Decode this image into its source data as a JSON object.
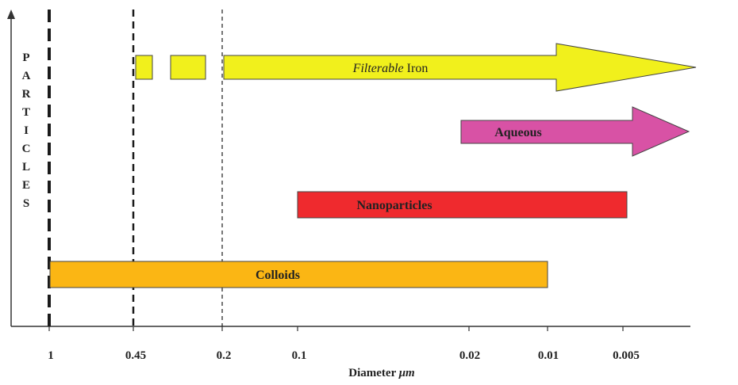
{
  "diagram": {
    "y_axis_letters": [
      "P",
      "A",
      "R",
      "T",
      "I",
      "C",
      "L",
      "E",
      "S"
    ],
    "x_axis_title_prefix": "Diameter ",
    "x_axis_title_unit": "μm",
    "x_ticks": [
      "1",
      "0.45",
      "0.2",
      "0.1",
      "0.02",
      "0.01",
      "0.005"
    ],
    "labels": {
      "filterable_italic": "Filterable",
      "filterable_rest": " Iron",
      "aqueous": "Aqueous",
      "nanoparticles": "Nanoparticles",
      "colloids": "Colloids"
    },
    "colors": {
      "filterable": "#f1f01c",
      "aqueous": "#d852a5",
      "nanoparticles": "#ef2a2e",
      "colloids": "#fbb614",
      "outline": "#444444"
    }
  }
}
